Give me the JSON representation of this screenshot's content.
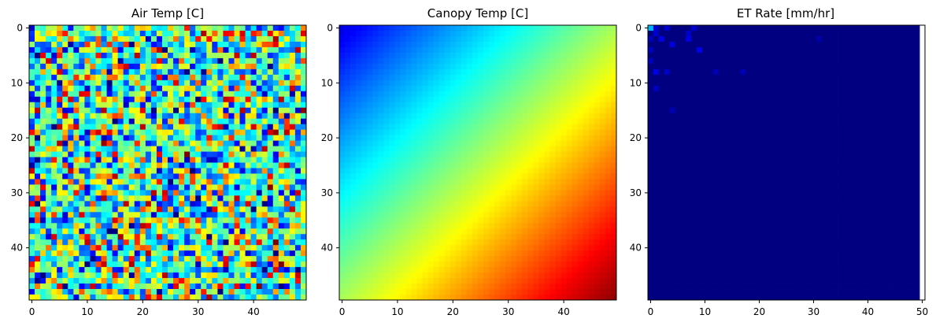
{
  "chart_data": [
    {
      "type": "heatmap",
      "title": "Air Temp [C]",
      "colormap": "jet",
      "pattern": "random",
      "grid_size": 50,
      "xlabel": "",
      "ylabel": "",
      "xlim": [
        -0.5,
        49.5
      ],
      "ylim": [
        49.5,
        -0.5
      ],
      "x_ticks": [
        0,
        10,
        20,
        30,
        40
      ],
      "y_ticks": [
        0,
        10,
        20,
        30,
        40
      ],
      "x_tick_labels": [
        "0",
        "10",
        "20",
        "30",
        "40"
      ],
      "y_tick_labels": [
        "0",
        "10",
        "20",
        "30",
        "40"
      ],
      "value_range_norm": [
        0,
        1
      ],
      "typical_value_norm": 0.45,
      "grid": false
    },
    {
      "type": "heatmap",
      "title": "Canopy Temp [C]",
      "colormap": "jet",
      "pattern": "diagonal-gradient",
      "grid_size": 50,
      "xlabel": "",
      "ylabel": "",
      "xlim": [
        -0.5,
        49.5
      ],
      "ylim": [
        49.5,
        -0.5
      ],
      "x_ticks": [
        0,
        10,
        20,
        30,
        40
      ],
      "y_ticks": [
        0,
        10,
        20,
        30,
        40
      ],
      "x_tick_labels": [
        "0",
        "10",
        "20",
        "30",
        "40"
      ],
      "y_tick_labels": [
        "0",
        "10",
        "20",
        "30",
        "40"
      ],
      "value_range_norm": [
        0,
        1
      ],
      "grid": false
    },
    {
      "type": "heatmap",
      "title": "ET Rate [mm/hr]",
      "colormap": "jet",
      "pattern": "sparse",
      "grid_size": 50,
      "xlabel": "",
      "ylabel": "",
      "xlim": [
        -0.5,
        50.5
      ],
      "ylim": [
        49.5,
        -0.5
      ],
      "x_ticks": [
        0,
        10,
        20,
        30,
        40,
        50
      ],
      "y_ticks": [
        0,
        10,
        20,
        30,
        40
      ],
      "x_tick_labels": [
        "0",
        "10",
        "20",
        "30",
        "40",
        "50"
      ],
      "y_tick_labels": [
        "0",
        "10",
        "20",
        "30",
        "40"
      ],
      "value_range_norm": [
        0,
        1
      ],
      "background_value_norm": 0,
      "highlight_cells": [
        {
          "x": 0,
          "y": 0,
          "v": 0.3
        },
        {
          "x": 1,
          "y": 0,
          "v": 0.08
        },
        {
          "x": 3,
          "y": 0,
          "v": 0.08
        },
        {
          "x": 8,
          "y": 0,
          "v": 0.08
        },
        {
          "x": 1,
          "y": 1,
          "v": 0.08
        },
        {
          "x": 0,
          "y": 2,
          "v": 0.06
        },
        {
          "x": 2,
          "y": 2,
          "v": 0.1
        },
        {
          "x": 7,
          "y": 1,
          "v": 0.07
        },
        {
          "x": 7,
          "y": 2,
          "v": 0.1
        },
        {
          "x": 4,
          "y": 3,
          "v": 0.09
        },
        {
          "x": 0,
          "y": 4,
          "v": 0.06
        },
        {
          "x": 9,
          "y": 4,
          "v": 0.1
        },
        {
          "x": 0,
          "y": 6,
          "v": 0.06
        },
        {
          "x": 1,
          "y": 8,
          "v": 0.1
        },
        {
          "x": 3,
          "y": 8,
          "v": 0.07
        },
        {
          "x": 12,
          "y": 8,
          "v": 0.05
        },
        {
          "x": 17,
          "y": 8,
          "v": 0.05
        },
        {
          "x": 1,
          "y": 11,
          "v": 0.06
        },
        {
          "x": 4,
          "y": 15,
          "v": 0.05
        },
        {
          "x": 31,
          "y": 2,
          "v": 0.04
        }
      ],
      "grid": false
    }
  ]
}
